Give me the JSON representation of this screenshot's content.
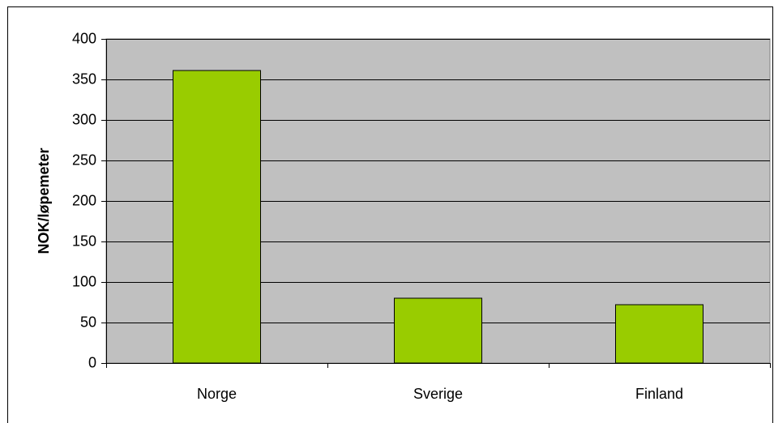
{
  "chart_data": {
    "type": "bar",
    "y_label": "NOK/løpemeter",
    "categories": [
      "Norge",
      "Sverige",
      "Finland"
    ],
    "values": [
      361,
      80,
      72
    ],
    "color": "#99cc00",
    "ylim": [
      0,
      400
    ],
    "yticks": [
      0,
      50,
      100,
      150,
      200,
      250,
      300,
      350,
      400
    ],
    "grid": true
  }
}
